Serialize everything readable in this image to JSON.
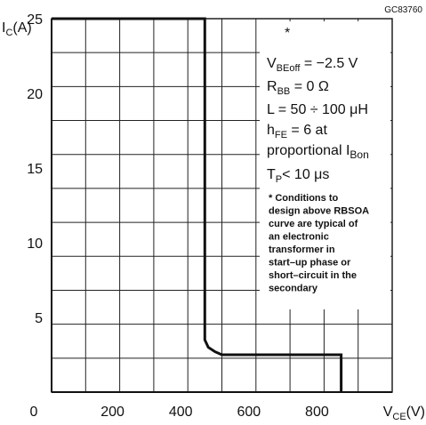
{
  "figure_code": "GC83760",
  "chart_data": {
    "type": "line",
    "title": "",
    "xlabel": "V_CE(V)",
    "ylabel": "I_C(A)",
    "xlim": [
      0,
      1000
    ],
    "ylim": [
      0,
      25
    ],
    "x_ticks": [
      "0",
      "200",
      "400",
      "600",
      "800"
    ],
    "y_ticks": [
      "5",
      "10",
      "15",
      "20",
      "25"
    ],
    "grid": true,
    "series": [
      {
        "x": [
          0,
          450,
          450,
          460,
          480,
          500,
          850,
          850
        ],
        "y": [
          25,
          25,
          3.5,
          3.0,
          2.7,
          2.5,
          2.5,
          0
        ]
      }
    ],
    "annotations": {
      "asterisk": "*",
      "vbe": {
        "prefix": "V",
        "sub": "BEoff",
        "suffix": " = −2.5 V"
      },
      "rbb": {
        "prefix": "R",
        "sub": "BB",
        "suffix": " = 0 Ω"
      },
      "l": "L = 50 ÷ 100 μH",
      "hfe": {
        "prefix": "h",
        "sub": "FE",
        "suffix": " = 6  at"
      },
      "prop": {
        "prefix": "proportional I",
        "sub": "Bon"
      },
      "tp": {
        "prefix": "T",
        "sub": "P",
        "suffix": "< 10 μs"
      },
      "conditions": [
        "* Conditions to",
        "design above RBSOA",
        "curve are typical of",
        "an electronic",
        "transformer in",
        "start–up phase or",
        "short–circuit in the",
        "secondary"
      ]
    }
  }
}
